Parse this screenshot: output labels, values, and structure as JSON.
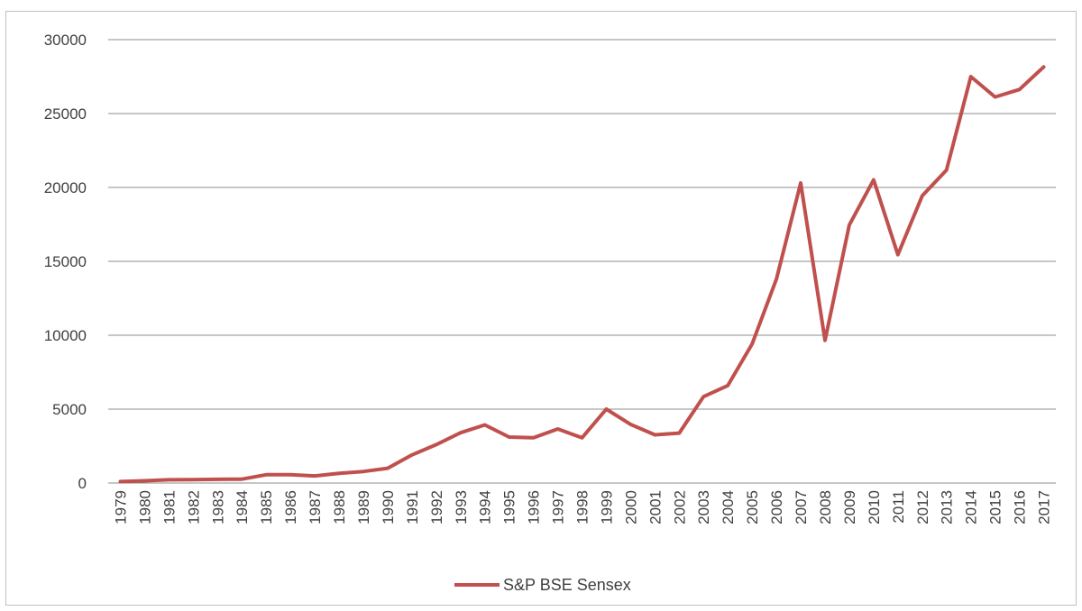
{
  "chart_data": {
    "type": "line",
    "title": "",
    "xlabel": "",
    "ylabel": "",
    "categories": [
      "1979",
      "1980",
      "1981",
      "1982",
      "1983",
      "1984",
      "1985",
      "1986",
      "1987",
      "1988",
      "1989",
      "1990",
      "1991",
      "1992",
      "1993",
      "1994",
      "1995",
      "1996",
      "1997",
      "1998",
      "1999",
      "2000",
      "2001",
      "2002",
      "2003",
      "2004",
      "2005",
      "2006",
      "2007",
      "2008",
      "2009",
      "2010",
      "2011",
      "2012",
      "2013",
      "2014",
      "2015",
      "2016",
      "2017"
    ],
    "series": [
      {
        "name": "S&P BSE Sensex",
        "color": "#c0504d",
        "values": [
          100,
          150,
          220,
          230,
          250,
          260,
          560,
          560,
          480,
          660,
          780,
          1000,
          1900,
          2600,
          3400,
          3930,
          3110,
          3060,
          3660,
          3060,
          5000,
          3970,
          3260,
          3380,
          5840,
          6600,
          9400,
          13800,
          20300,
          9650,
          17460,
          20510,
          15450,
          19430,
          21170,
          27500,
          26120,
          26630,
          28150
        ]
      }
    ],
    "ylim": [
      0,
      30000
    ],
    "yticks": [
      0,
      5000,
      10000,
      15000,
      20000,
      25000,
      30000
    ],
    "ytick_labels": [
      "0",
      "5000",
      "10000",
      "15000",
      "20000",
      "25000",
      "30000"
    ],
    "grid": true,
    "legend": "bottom"
  }
}
